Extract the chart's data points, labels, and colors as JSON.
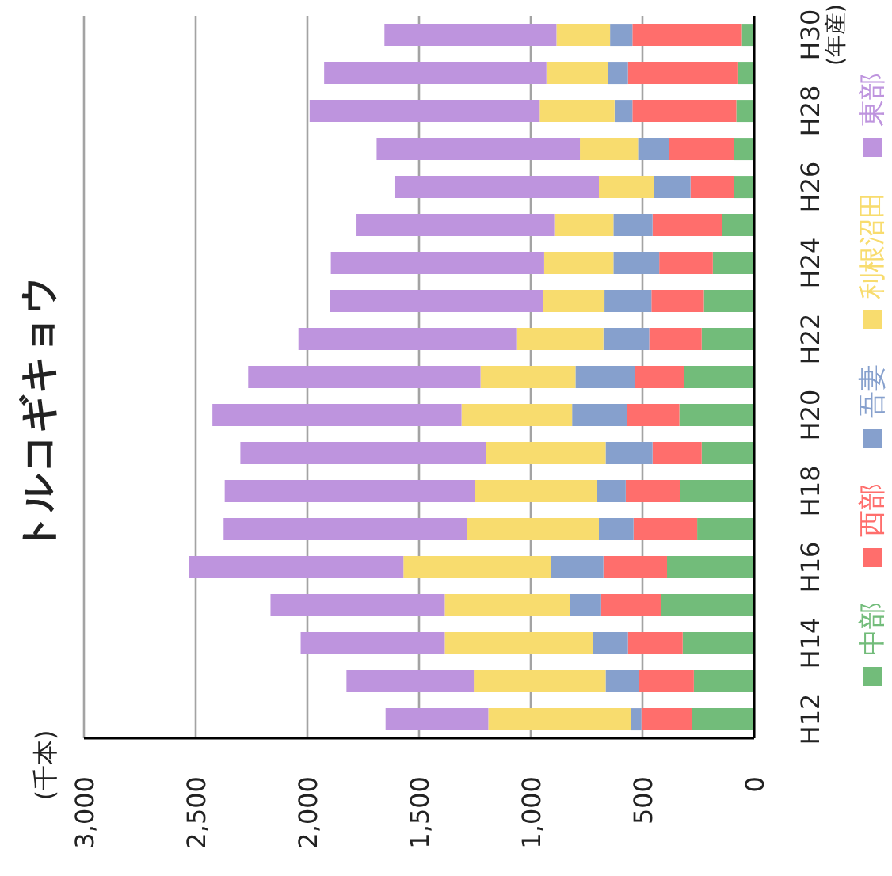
{
  "chart_data": {
    "type": "bar",
    "orientation": "horizontal",
    "stacked": true,
    "title": "トルコギキョウ",
    "ylabel": "(年産)",
    "annotations": [
      "(千本)"
    ],
    "categories": [
      "H30",
      null,
      "H28",
      null,
      "H26",
      null,
      "H24",
      null,
      "H22",
      null,
      "H20",
      null,
      "H18",
      null,
      "H16",
      null,
      "H14",
      null,
      "H12"
    ],
    "xlim": [
      3000,
      0
    ],
    "xticks": [
      {
        "value": 3000,
        "label": "3,000"
      },
      {
        "value": 2500,
        "label": "2,500"
      },
      {
        "value": 2000,
        "label": "2,000"
      },
      {
        "value": 1500,
        "label": "1,500"
      },
      {
        "value": 1000,
        "label": "1,000"
      },
      500,
      0
    ],
    "grid": "x",
    "legend": "right",
    "series": [
      {
        "name": "中部",
        "color": "#72bc7a",
        "values": [
          55,
          75,
          80,
          90,
          90,
          145,
          185,
          225,
          235,
          315,
          335,
          235,
          330,
          255,
          390,
          415,
          320,
          270,
          280
        ]
      },
      {
        "name": "西部",
        "color": "#ff6e6c",
        "values": [
          490,
          490,
          465,
          290,
          195,
          310,
          240,
          235,
          235,
          220,
          235,
          220,
          245,
          285,
          285,
          270,
          245,
          245,
          225
        ]
      },
      {
        "name": "吾妻",
        "color": "#86a0cd",
        "values": [
          100,
          90,
          80,
          140,
          165,
          175,
          205,
          210,
          205,
          265,
          245,
          210,
          130,
          155,
          235,
          140,
          155,
          150,
          45
        ]
      },
      {
        "name": "利根沼田",
        "color": "#f8dc6e",
        "values": [
          240,
          275,
          335,
          260,
          245,
          265,
          310,
          275,
          390,
          425,
          495,
          535,
          545,
          590,
          660,
          560,
          665,
          590,
          640
        ]
      },
      {
        "name": "東部",
        "color": "#be94de",
        "values": [
          770,
          995,
          1030,
          910,
          915,
          885,
          955,
          955,
          975,
          1040,
          1115,
          1100,
          1120,
          1090,
          960,
          780,
          645,
          570,
          460
        ]
      }
    ]
  }
}
